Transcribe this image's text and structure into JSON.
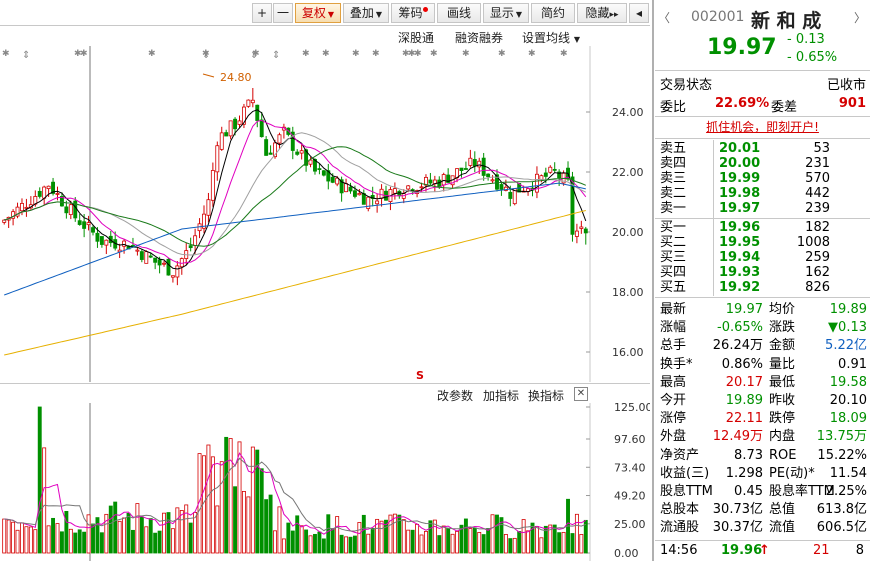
{
  "toolbar": {
    "plus": "+",
    "minus": "一",
    "fuquan": "复权",
    "diejia": "叠加",
    "chouma": "筹码",
    "huaxian": "画线",
    "xianshi": "显示",
    "jianyue": "简约",
    "yincang": "隐藏",
    "forward": "▸▸",
    "collapse": "◂"
  },
  "subbar": {
    "shengutong": "深股通",
    "rongzi": "融资融券",
    "junxian": "设置均线"
  },
  "vol_header": {
    "gaicanshu": "改参数",
    "jiazhibiao": "加指标",
    "huanzhibiao": "换指标",
    "close": "✕"
  },
  "markers": {
    "star": "✱",
    "arrow": "⇕",
    "s_mark": "S",
    "peak_label": "24.80"
  },
  "colors": {
    "up": "#d40000",
    "down": "#009000",
    "ma5": "#000000",
    "ma10": "#e000c0",
    "ma20": "#a0a0a0",
    "ma30": "#1a7a1a",
    "ma60": "#1060c0",
    "ma120": "#e6b000"
  },
  "chart_data": {
    "type": "candlestick",
    "price_axis": {
      "ticks": [
        "24.00",
        "22.00",
        "20.00",
        "18.00",
        "16.00"
      ],
      "ylim": [
        15.0,
        26.2
      ]
    },
    "volume_axis": {
      "ticks": [
        "125.00",
        "97.60",
        "73.40",
        "49.20",
        "25.00",
        "0.00"
      ],
      "ylim": [
        0,
        125
      ]
    }
  },
  "quote": {
    "code": "002001",
    "name": "新 和 成",
    "price": "19.97",
    "change": "- 0.13",
    "pct": "- 0.65%",
    "status_label": "交易状态",
    "status_value": "已收市",
    "weibi_label": "委比",
    "weibi_value": "22.69%",
    "weicha_label": "委差",
    "weicha_value": "901",
    "promo": "抓住机会，即刻开户!",
    "asks": [
      {
        "label": "卖五",
        "price": "20.01",
        "vol": "53"
      },
      {
        "label": "卖四",
        "price": "20.00",
        "vol": "231"
      },
      {
        "label": "卖三",
        "price": "19.99",
        "vol": "570"
      },
      {
        "label": "卖二",
        "price": "19.98",
        "vol": "442"
      },
      {
        "label": "卖一",
        "price": "19.97",
        "vol": "239"
      }
    ],
    "bids": [
      {
        "label": "买一",
        "price": "19.96",
        "vol": "182"
      },
      {
        "label": "买二",
        "price": "19.95",
        "vol": "1008"
      },
      {
        "label": "买三",
        "price": "19.94",
        "vol": "259"
      },
      {
        "label": "买四",
        "price": "19.93",
        "vol": "162"
      },
      {
        "label": "买五",
        "price": "19.92",
        "vol": "826"
      }
    ],
    "stats": [
      {
        "l1": "最新",
        "v1": "19.97",
        "c1": "green",
        "l2": "均价",
        "v2": "19.89",
        "c2": "green"
      },
      {
        "l1": "涨幅",
        "v1": "-0.65%",
        "c1": "green",
        "l2": "涨跌",
        "v2": "▼0.13",
        "c2": "green"
      },
      {
        "l1": "总手",
        "v1": "26.24万",
        "c1": "",
        "l2": "金额",
        "v2": "5.22亿",
        "c2": "blue"
      },
      {
        "l1": "换手*",
        "v1": "0.86%",
        "c1": "",
        "l2": "量比",
        "v2": "0.91",
        "c2": ""
      },
      {
        "l1": "最高",
        "v1": "20.17",
        "c1": "red",
        "l2": "最低",
        "v2": "19.58",
        "c2": "green"
      },
      {
        "l1": "今开",
        "v1": "19.89",
        "c1": "green",
        "l2": "昨收",
        "v2": "20.10",
        "c2": ""
      },
      {
        "l1": "涨停",
        "v1": "22.11",
        "c1": "red",
        "l2": "跌停",
        "v2": "18.09",
        "c2": "green"
      },
      {
        "l1": "外盘",
        "v1": "12.49万",
        "c1": "red",
        "l2": "内盘",
        "v2": "13.75万",
        "c2": "green"
      },
      {
        "l1": "净资产",
        "v1": "8.73",
        "c1": "",
        "l2": "ROE",
        "v2": "15.22%",
        "c2": ""
      },
      {
        "l1": "收益(三)",
        "v1": "1.298",
        "c1": "",
        "l2": "PE(动)*",
        "v2": "11.54",
        "c2": ""
      },
      {
        "l1": "股息TTM",
        "v1": "0.45",
        "c1": "",
        "l2": "股息率TTM",
        "v2": "2.25%",
        "c2": ""
      },
      {
        "l1": "总股本",
        "v1": "30.73亿",
        "c1": "",
        "l2": "总值",
        "v2": "613.8亿",
        "c2": ""
      },
      {
        "l1": "流通股",
        "v1": "30.37亿",
        "c1": "",
        "l2": "流值",
        "v2": "606.5亿",
        "c2": ""
      }
    ],
    "last_tick": {
      "time": "14:56",
      "price": "19.96",
      "arrow": "↑",
      "vol": "21",
      "count": "8"
    }
  }
}
